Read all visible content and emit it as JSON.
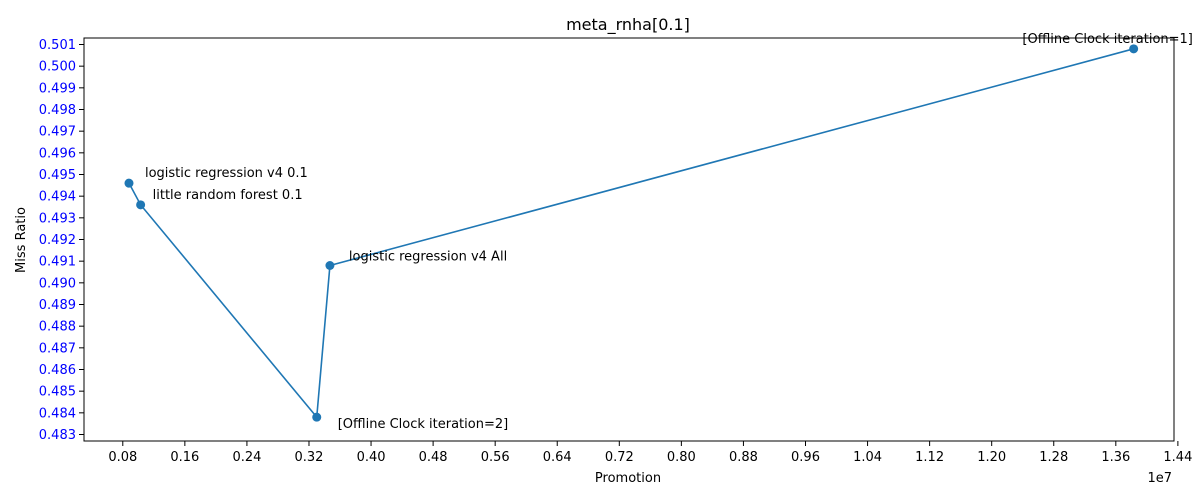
{
  "chart_data": {
    "type": "line",
    "title": "meta_rnha[0.1]",
    "xlabel": "Promotion",
    "ylabel": "Miss Ratio",
    "x_offset_label": "1e7",
    "xlim": [
      0.03,
      1.435
    ],
    "ylim": [
      0.4827,
      0.5013
    ],
    "x_ticks": [
      0.08,
      0.16,
      0.24,
      0.32,
      0.4,
      0.48,
      0.56,
      0.64,
      0.72,
      0.8,
      0.88,
      0.96,
      1.04,
      1.12,
      1.2,
      1.28,
      1.36,
      1.44
    ],
    "x_tick_labels": [
      "0.08",
      "0.16",
      "0.24",
      "0.32",
      "0.40",
      "0.48",
      "0.56",
      "0.64",
      "0.72",
      "0.80",
      "0.88",
      "0.96",
      "1.04",
      "1.12",
      "1.20",
      "1.28",
      "1.36",
      "1.44"
    ],
    "y_ticks": [
      0.483,
      0.484,
      0.485,
      0.486,
      0.487,
      0.488,
      0.489,
      0.49,
      0.491,
      0.492,
      0.493,
      0.494,
      0.495,
      0.496,
      0.497,
      0.498,
      0.499,
      0.5,
      0.501
    ],
    "y_tick_labels": [
      "0.483",
      "0.484",
      "0.485",
      "0.486",
      "0.487",
      "0.488",
      "0.489",
      "0.490",
      "0.491",
      "0.492",
      "0.493",
      "0.494",
      "0.495",
      "0.496",
      "0.497",
      "0.498",
      "0.499",
      "0.500",
      "0.501"
    ],
    "y_tick_color": "#0000ff",
    "line_color": "#1f77b4",
    "grid": false,
    "series": [
      {
        "points": [
          {
            "x": 0.088,
            "y": 0.4946,
            "label": "logistic regression v4 0.1"
          },
          {
            "x": 0.103,
            "y": 0.4936,
            "label": "little random forest 0.1"
          },
          {
            "x": 0.33,
            "y": 0.4838,
            "label": "[Offline Clock iteration=2]"
          },
          {
            "x": 0.347,
            "y": 0.4908,
            "label": "logistic regression v4 All"
          },
          {
            "x": 1.383,
            "y": 0.5008,
            "label": "[Offline Clock iteration=1]"
          }
        ]
      }
    ]
  }
}
